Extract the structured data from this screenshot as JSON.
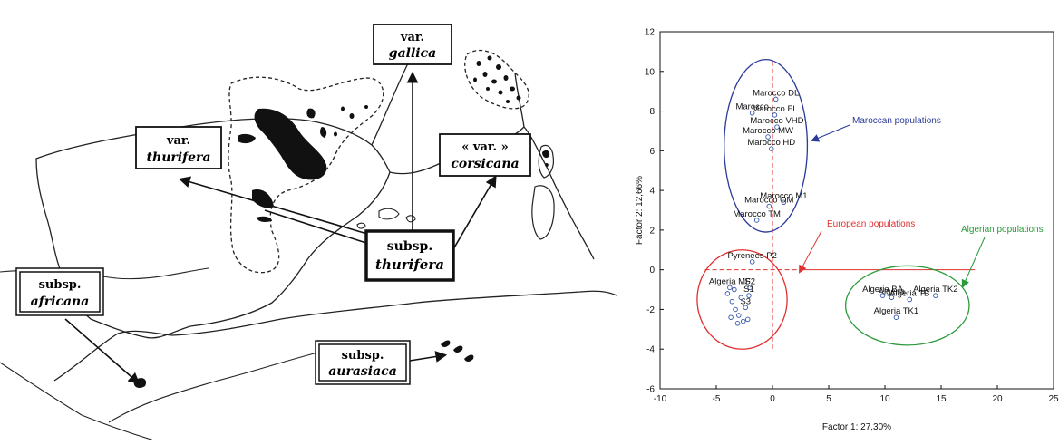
{
  "map": {
    "labels": {
      "gallica": {
        "var": "var.",
        "name": "gallica"
      },
      "thurifera_var": {
        "var": "var.",
        "name": "thurifera"
      },
      "corsicana": {
        "var": "« var. »",
        "name": "corsicana"
      },
      "thurifera_subsp": {
        "var": "subsp.",
        "name": "thurifera"
      },
      "africana": {
        "var": "subsp.",
        "name": "africana"
      },
      "aurasiaca": {
        "var": "subsp.",
        "name": "aurasiaca"
      }
    }
  },
  "chart_data": {
    "type": "scatter",
    "xlabel": "Factor 1: 27,30%",
    "ylabel": "Factor 2: 12,66%",
    "xlim": [
      -10,
      25
    ],
    "ylim": [
      -6,
      12
    ],
    "xticks": [
      -10,
      -5,
      0,
      5,
      10,
      15,
      20,
      25
    ],
    "yticks": [
      -6,
      -4,
      -2,
      0,
      2,
      4,
      6,
      8,
      10,
      12
    ],
    "point_color": "#3355aa",
    "points": [
      {
        "label": "Marocco DL",
        "x": 0.3,
        "y": 8.6
      },
      {
        "label": "Marocco FL",
        "x": 0.2,
        "y": 7.8
      },
      {
        "label": "Marocco",
        "x": -1.8,
        "y": 7.9
      },
      {
        "label": "Marocco VHD",
        "x": 0.4,
        "y": 7.2
      },
      {
        "label": "Marocco MW",
        "x": -0.4,
        "y": 6.7
      },
      {
        "label": "Marocco HD",
        "x": -0.1,
        "y": 6.1
      },
      {
        "label": "Marocco M1",
        "x": 1.0,
        "y": 3.4
      },
      {
        "label": "Marocco OM",
        "x": -0.3,
        "y": 3.2
      },
      {
        "label": "Marocco TM",
        "x": -1.4,
        "y": 2.5
      },
      {
        "label": "Pyrenees P2",
        "x": -1.8,
        "y": 0.4
      },
      {
        "label": "Algeria MF",
        "x": -3.8,
        "y": -0.9
      },
      {
        "label": "S2",
        "x": -2.0,
        "y": -0.9
      },
      {
        "label": "S1",
        "x": -2.1,
        "y": -1.3
      },
      {
        "label": "S3",
        "x": -2.4,
        "y": -1.9
      },
      {
        "label": "",
        "x": -4.0,
        "y": -1.2
      },
      {
        "label": "",
        "x": -3.6,
        "y": -1.6
      },
      {
        "label": "",
        "x": -3.3,
        "y": -2.0
      },
      {
        "label": "",
        "x": -3.0,
        "y": -2.3
      },
      {
        "label": "",
        "x": -3.7,
        "y": -2.4
      },
      {
        "label": "",
        "x": -2.6,
        "y": -2.6
      },
      {
        "label": "",
        "x": -3.1,
        "y": -2.7
      },
      {
        "label": "",
        "x": -2.2,
        "y": -2.5
      },
      {
        "label": "",
        "x": -2.8,
        "y": -1.4
      },
      {
        "label": "",
        "x": -3.4,
        "y": -1.0
      },
      {
        "label": "Algeria BA",
        "x": 9.8,
        "y": -1.3
      },
      {
        "label": "Algeria",
        "x": 10.6,
        "y": -1.4
      },
      {
        "label": "Algeria TB",
        "x": 12.2,
        "y": -1.5
      },
      {
        "label": "Algeria TK2",
        "x": 14.5,
        "y": -1.3
      },
      {
        "label": "Algeria TK1",
        "x": 11.0,
        "y": -2.4
      }
    ],
    "groups": [
      {
        "name": "Maroccan populations",
        "color": "#2a3a9a",
        "cx": -0.6,
        "cy": 6.25,
        "rx": 3.7,
        "ry": 4.35
      },
      {
        "name": "European populations",
        "color": "#e03030",
        "cx": -2.7,
        "cy": -1.5,
        "rx": 4.0,
        "ry": 2.5
      },
      {
        "name": "Algerian populations",
        "color": "#2a9a3a",
        "cx": 12.0,
        "cy": -1.8,
        "rx": 5.5,
        "ry": 2.0
      }
    ]
  }
}
